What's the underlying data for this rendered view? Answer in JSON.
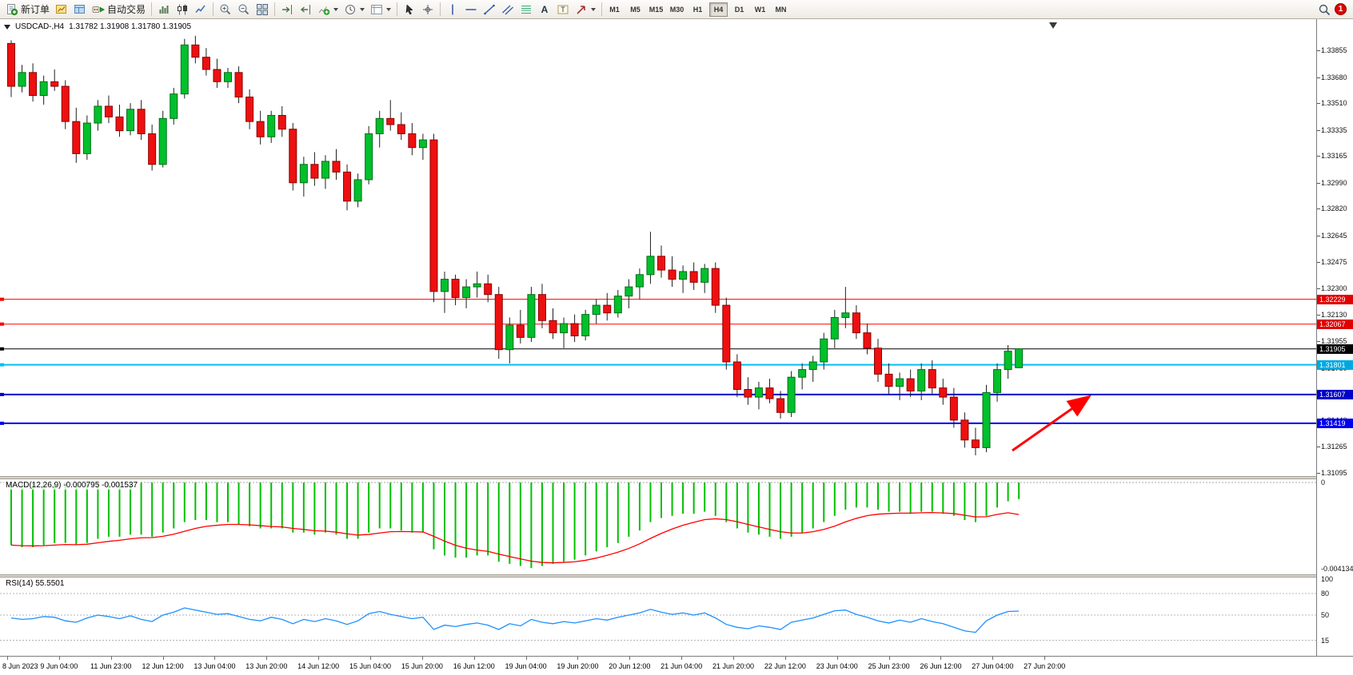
{
  "colors": {
    "bull": "#00C02C",
    "bull_border": "#006E14",
    "bear": "#EE1010",
    "bear_border": "#8E0000",
    "wick": "#202020",
    "accent_red": "#FF0000",
    "accent_cyan": "#00C0F0",
    "accent_blue": "#0000D0",
    "macd_bar": "#00C000",
    "macd_signal": "#FF0000",
    "rsi_line": "#1E90FF"
  },
  "toolbar": {
    "items": [
      {
        "name": "new-order",
        "icon": "new-order-icon",
        "label": "新订单"
      },
      {
        "name": "charts",
        "icon": "chart-window-icon"
      },
      {
        "name": "profiles",
        "icon": "profiles-icon"
      },
      {
        "name": "auto-trading",
        "icon": "auto-trading-icon",
        "label": "自动交易"
      },
      {
        "sep": true
      },
      {
        "name": "bar-chart",
        "icon": "bar-chart-icon"
      },
      {
        "name": "candlestick-chart",
        "icon": "candlestick-icon"
      },
      {
        "name": "line-chart",
        "icon": "line-chart-icon"
      },
      {
        "sep": true
      },
      {
        "name": "zoom-in",
        "icon": "zoom-in-icon"
      },
      {
        "name": "zoom-out",
        "icon": "zoom-out-icon"
      },
      {
        "name": "tile-windows",
        "icon": "tile-windows-icon"
      },
      {
        "sep": true
      },
      {
        "name": "auto-scroll",
        "icon": "auto-scroll-icon"
      },
      {
        "name": "chart-shift",
        "icon": "chart-shift-icon"
      },
      {
        "name": "indicators",
        "icon": "indicators-icon",
        "caret": true
      },
      {
        "name": "periods",
        "icon": "clock-icon",
        "caret": true
      },
      {
        "name": "templates",
        "icon": "template-icon",
        "caret": true
      },
      {
        "sep": true
      },
      {
        "name": "cursor",
        "icon": "cursor-icon"
      },
      {
        "name": "crosshair",
        "icon": "crosshair-icon"
      },
      {
        "sep": true
      },
      {
        "name": "vertical-line",
        "icon": "vline-icon"
      },
      {
        "name": "horizontal-line",
        "icon": "hline-icon"
      },
      {
        "name": "trendline",
        "icon": "trendline-icon"
      },
      {
        "name": "equidistant-channel",
        "icon": "channel-icon"
      },
      {
        "name": "fibonacci",
        "icon": "fibonacci-icon"
      },
      {
        "name": "text",
        "icon": "text-icon"
      },
      {
        "name": "text-label",
        "icon": "label-icon"
      },
      {
        "name": "arrow-tools",
        "icon": "arrow-tools-icon",
        "caret": true
      },
      {
        "sep": true
      }
    ],
    "timeframes": [
      "M1",
      "M5",
      "M15",
      "M30",
      "H1",
      "H4",
      "D1",
      "W1",
      "MN"
    ],
    "active_timeframe": "H4",
    "notification_count": "1"
  },
  "chart": {
    "title": "USDCAD-,H4",
    "ohlc_text": "1.31782 1.31908 1.31780 1.31905",
    "macd_label": "MACD(12,26,9) -0.000795 -0.001537",
    "rsi_label": "RSI(14) 55.5501"
  },
  "chart_data": [
    {
      "type": "candlestick",
      "title": "USDCAD-,H4",
      "ylim": [
        1.31095,
        1.33855
      ],
      "y_ticks": [
        "1.33855",
        "1.33680",
        "1.33510",
        "1.33335",
        "1.33165",
        "1.32990",
        "1.32820",
        "1.32645",
        "1.32475",
        "1.32300",
        "1.32130",
        "1.31955",
        "1.31780",
        "1.31610",
        "1.31440",
        "1.31265",
        "1.31095"
      ],
      "x_labels": [
        "8 Jun 2023",
        "9 Jun 04:00",
        "11 Jun 23:00",
        "12 Jun 12:00",
        "13 Jun 04:00",
        "13 Jun 20:00",
        "14 Jun 12:00",
        "15 Jun 04:00",
        "15 Jun 20:00",
        "16 Jun 12:00",
        "19 Jun 04:00",
        "19 Jun 20:00",
        "20 Jun 12:00",
        "21 Jun 04:00",
        "21 Jun 20:00",
        "22 Jun 12:00",
        "23 Jun 04:00",
        "25 Jun 23:00",
        "26 Jun 12:00",
        "27 Jun 04:00",
        "27 Jun 20:00"
      ],
      "levels": [
        {
          "price": 1.32229,
          "label": "1.32229",
          "color": "#FF0000",
          "badge_color": "#E00000",
          "width": 1
        },
        {
          "price": 1.32067,
          "label": "1.32067",
          "color": "#FF0000",
          "badge_color": "#E00000",
          "width": 1
        },
        {
          "price": 1.31905,
          "label": "1.31905",
          "color": "#000000",
          "badge_color": "#000000",
          "width": 1,
          "role": "current-price"
        },
        {
          "price": 1.31801,
          "label": "1.31801",
          "color": "#00C0F0",
          "badge_color": "#00A8E0",
          "width": 2
        },
        {
          "price": 1.31607,
          "label": "1.31607",
          "color": "#0000C8",
          "badge_color": "#0000C8",
          "width": 2
        },
        {
          "price": 1.31419,
          "label": "1.31419",
          "color": "#0000F0",
          "badge_color": "#0000F0",
          "width": 2
        }
      ],
      "annotations": [
        {
          "type": "arrow",
          "color": "#FF0000",
          "from": [
            1266,
            540
          ],
          "to": [
            1360,
            474
          ]
        }
      ],
      "ohlc": [
        [
          1.339,
          1.3392,
          1.3355,
          1.3362
        ],
        [
          1.3362,
          1.3376,
          1.3358,
          1.3371
        ],
        [
          1.3371,
          1.3377,
          1.3352,
          1.3356
        ],
        [
          1.3356,
          1.3369,
          1.335,
          1.3365
        ],
        [
          1.3365,
          1.3373,
          1.3359,
          1.3362
        ],
        [
          1.3362,
          1.3366,
          1.3334,
          1.3339
        ],
        [
          1.3339,
          1.3348,
          1.3312,
          1.3318
        ],
        [
          1.3318,
          1.3343,
          1.3314,
          1.3338
        ],
        [
          1.3338,
          1.3353,
          1.3333,
          1.3349
        ],
        [
          1.3349,
          1.3356,
          1.3338,
          1.3342
        ],
        [
          1.3342,
          1.335,
          1.3329,
          1.3333
        ],
        [
          1.3333,
          1.3351,
          1.333,
          1.3347
        ],
        [
          1.3347,
          1.3353,
          1.3327,
          1.3331
        ],
        [
          1.3331,
          1.3337,
          1.3307,
          1.3311
        ],
        [
          1.3311,
          1.3346,
          1.3309,
          1.3341
        ],
        [
          1.3341,
          1.3361,
          1.3337,
          1.3357
        ],
        [
          1.3357,
          1.3393,
          1.3354,
          1.3389
        ],
        [
          1.3389,
          1.3395,
          1.3377,
          1.3381
        ],
        [
          1.3381,
          1.3387,
          1.3369,
          1.3373
        ],
        [
          1.3373,
          1.338,
          1.3361,
          1.3365
        ],
        [
          1.3365,
          1.3374,
          1.3361,
          1.3371
        ],
        [
          1.3371,
          1.3375,
          1.3351,
          1.3355
        ],
        [
          1.3355,
          1.336,
          1.3334,
          1.3339
        ],
        [
          1.3339,
          1.3346,
          1.3324,
          1.3329
        ],
        [
          1.3329,
          1.3346,
          1.3325,
          1.3343
        ],
        [
          1.3343,
          1.3349,
          1.3329,
          1.3334
        ],
        [
          1.3334,
          1.3338,
          1.3294,
          1.3299
        ],
        [
          1.3299,
          1.3316,
          1.329,
          1.3311
        ],
        [
          1.3311,
          1.3319,
          1.3297,
          1.3302
        ],
        [
          1.3302,
          1.3317,
          1.3295,
          1.3313
        ],
        [
          1.3313,
          1.3321,
          1.3301,
          1.3306
        ],
        [
          1.3306,
          1.3311,
          1.3281,
          1.3287
        ],
        [
          1.3287,
          1.3305,
          1.3283,
          1.3301
        ],
        [
          1.3301,
          1.3336,
          1.3298,
          1.3331
        ],
        [
          1.3331,
          1.3346,
          1.3322,
          1.3341
        ],
        [
          1.3341,
          1.3353,
          1.3333,
          1.3337
        ],
        [
          1.3337,
          1.3345,
          1.3327,
          1.3331
        ],
        [
          1.3331,
          1.3338,
          1.3317,
          1.3322
        ],
        [
          1.3322,
          1.3331,
          1.3314,
          1.3327
        ],
        [
          1.3327,
          1.3331,
          1.3221,
          1.3228
        ],
        [
          1.3228,
          1.3241,
          1.3214,
          1.3236
        ],
        [
          1.3236,
          1.3239,
          1.3219,
          1.3224
        ],
        [
          1.3224,
          1.3236,
          1.3217,
          1.3231
        ],
        [
          1.3231,
          1.3241,
          1.3224,
          1.3233
        ],
        [
          1.3233,
          1.3239,
          1.3221,
          1.3226
        ],
        [
          1.3226,
          1.3231,
          1.3184,
          1.319
        ],
        [
          1.319,
          1.3211,
          1.3181,
          1.3206
        ],
        [
          1.3206,
          1.3216,
          1.3194,
          1.3198
        ],
        [
          1.3198,
          1.3231,
          1.3195,
          1.3226
        ],
        [
          1.3226,
          1.3233,
          1.3204,
          1.3209
        ],
        [
          1.3209,
          1.3217,
          1.3197,
          1.3201
        ],
        [
          1.3201,
          1.3211,
          1.3191,
          1.3207
        ],
        [
          1.3207,
          1.3213,
          1.3195,
          1.3199
        ],
        [
          1.3199,
          1.3216,
          1.3196,
          1.3213
        ],
        [
          1.3213,
          1.3223,
          1.3207,
          1.3219
        ],
        [
          1.3219,
          1.3227,
          1.3209,
          1.3214
        ],
        [
          1.3214,
          1.3229,
          1.3211,
          1.3225
        ],
        [
          1.3225,
          1.3236,
          1.3217,
          1.3231
        ],
        [
          1.3231,
          1.3243,
          1.3223,
          1.3239
        ],
        [
          1.3239,
          1.3267,
          1.3233,
          1.3251
        ],
        [
          1.3251,
          1.3258,
          1.3237,
          1.3242
        ],
        [
          1.3242,
          1.3251,
          1.3231,
          1.3236
        ],
        [
          1.3236,
          1.3245,
          1.3227,
          1.3241
        ],
        [
          1.3241,
          1.3247,
          1.3229,
          1.3234
        ],
        [
          1.3234,
          1.3246,
          1.3227,
          1.3243
        ],
        [
          1.3243,
          1.3247,
          1.3214,
          1.3219
        ],
        [
          1.3219,
          1.3224,
          1.3177,
          1.3182
        ],
        [
          1.3182,
          1.3187,
          1.3159,
          1.3164
        ],
        [
          1.3164,
          1.3172,
          1.3154,
          1.3159
        ],
        [
          1.3159,
          1.3169,
          1.3151,
          1.3165
        ],
        [
          1.3165,
          1.3171,
          1.3155,
          1.3158
        ],
        [
          1.3158,
          1.3163,
          1.3145,
          1.3149
        ],
        [
          1.3149,
          1.3176,
          1.3146,
          1.3172
        ],
        [
          1.3172,
          1.3181,
          1.3164,
          1.3177
        ],
        [
          1.3177,
          1.3186,
          1.3169,
          1.3182
        ],
        [
          1.3182,
          1.3201,
          1.3177,
          1.3197
        ],
        [
          1.3197,
          1.3216,
          1.3191,
          1.3211
        ],
        [
          1.3211,
          1.3231,
          1.3204,
          1.3214
        ],
        [
          1.3214,
          1.3219,
          1.3197,
          1.3201
        ],
        [
          1.3201,
          1.3207,
          1.3187,
          1.3191
        ],
        [
          1.3191,
          1.3197,
          1.3169,
          1.3174
        ],
        [
          1.3174,
          1.3181,
          1.3161,
          1.3166
        ],
        [
          1.3166,
          1.3175,
          1.3157,
          1.3171
        ],
        [
          1.3171,
          1.3177,
          1.3159,
          1.3163
        ],
        [
          1.3163,
          1.3181,
          1.3157,
          1.3177
        ],
        [
          1.3177,
          1.3183,
          1.3161,
          1.3165
        ],
        [
          1.3165,
          1.3171,
          1.3154,
          1.3159
        ],
        [
          1.3159,
          1.3165,
          1.3139,
          1.3144
        ],
        [
          1.3144,
          1.3149,
          1.3126,
          1.3131
        ],
        [
          1.3131,
          1.3139,
          1.3121,
          1.3126
        ],
        [
          1.3126,
          1.3167,
          1.3123,
          1.3162
        ],
        [
          1.3162,
          1.3181,
          1.3156,
          1.3177
        ],
        [
          1.3177,
          1.3193,
          1.3171,
          1.3189
        ],
        [
          1.31782,
          1.31908,
          1.3178,
          1.31905
        ]
      ]
    },
    {
      "type": "bar",
      "title": "MACD(12,26,9)",
      "label": "MACD(12,26,9) -0.000795 -0.001537",
      "ylim": [
        -0.004134,
        0
      ],
      "y_ticks": [
        "0",
        "-0.004134"
      ],
      "bar_color": "#00C000",
      "signal_color": "#FF0000",
      "values": [
        -0.003,
        -0.0031,
        -0.0031,
        -0.003,
        -0.0029,
        -0.0029,
        -0.003,
        -0.0029,
        -0.0027,
        -0.0026,
        -0.0026,
        -0.0025,
        -0.0025,
        -0.0026,
        -0.0024,
        -0.0022,
        -0.0019,
        -0.0018,
        -0.0018,
        -0.0019,
        -0.0019,
        -0.002,
        -0.0021,
        -0.0022,
        -0.0022,
        -0.0022,
        -0.0024,
        -0.0024,
        -0.0025,
        -0.0024,
        -0.0025,
        -0.0027,
        -0.0027,
        -0.0024,
        -0.0022,
        -0.0022,
        -0.0023,
        -0.0024,
        -0.0024,
        -0.0032,
        -0.0035,
        -0.0036,
        -0.0036,
        -0.0035,
        -0.0035,
        -0.0038,
        -0.0039,
        -0.004,
        -0.0041,
        -0.004,
        -0.0039,
        -0.0038,
        -0.0037,
        -0.0035,
        -0.0033,
        -0.0031,
        -0.0029,
        -0.0026,
        -0.0023,
        -0.0019,
        -0.0017,
        -0.0016,
        -0.0015,
        -0.0015,
        -0.0014,
        -0.0016,
        -0.0019,
        -0.0022,
        -0.0024,
        -0.0025,
        -0.0026,
        -0.0027,
        -0.0026,
        -0.0024,
        -0.0022,
        -0.0019,
        -0.0016,
        -0.0013,
        -0.0012,
        -0.0012,
        -0.0013,
        -0.0014,
        -0.0014,
        -0.0015,
        -0.0014,
        -0.0014,
        -0.0015,
        -0.0016,
        -0.0018,
        -0.0019,
        -0.0016,
        -0.0012,
        -0.0009,
        -0.000795
      ],
      "signal": [
        -0.003,
        -0.00303,
        -0.00304,
        -0.00303,
        -0.003,
        -0.00297,
        -0.00298,
        -0.00296,
        -0.00289,
        -0.00282,
        -0.00277,
        -0.0027,
        -0.00265,
        -0.00264,
        -0.00258,
        -0.00248,
        -0.00234,
        -0.0022,
        -0.0021,
        -0.00205,
        -0.00201,
        -0.00201,
        -0.00203,
        -0.00207,
        -0.00211,
        -0.00213,
        -0.0022,
        -0.00225,
        -0.00231,
        -0.00233,
        -0.00238,
        -0.00246,
        -0.00252,
        -0.00249,
        -0.00242,
        -0.00236,
        -0.00235,
        -0.00236,
        -0.00237,
        -0.00258,
        -0.00281,
        -0.00301,
        -0.00315,
        -0.00324,
        -0.0033,
        -0.00343,
        -0.00355,
        -0.00366,
        -0.00377,
        -0.00383,
        -0.00385,
        -0.00383,
        -0.0038,
        -0.00373,
        -0.00362,
        -0.00349,
        -0.00334,
        -0.00316,
        -0.00294,
        -0.00268,
        -0.00244,
        -0.00223,
        -0.00205,
        -0.00191,
        -0.00178,
        -0.00174,
        -0.00178,
        -0.00188,
        -0.00201,
        -0.00213,
        -0.00225,
        -0.00236,
        -0.00242,
        -0.00242,
        -0.00236,
        -0.00225,
        -0.00209,
        -0.00189,
        -0.00172,
        -0.00159,
        -0.00152,
        -0.00149,
        -0.00147,
        -0.00147,
        -0.00145,
        -0.00144,
        -0.00146,
        -0.00149,
        -0.00157,
        -0.00165,
        -0.00164,
        -0.00153,
        -0.00145,
        -0.001537
      ]
    },
    {
      "type": "line",
      "title": "RSI(14)",
      "label": "RSI(14) 55.5501",
      "ylim": [
        0,
        100
      ],
      "y_ticks": [
        "100",
        "80",
        "50",
        "15"
      ],
      "levels": [
        80,
        50,
        15
      ],
      "line_color": "#1E90FF",
      "values": [
        46,
        44,
        45,
        48,
        47,
        42,
        40,
        46,
        50,
        48,
        45,
        49,
        44,
        41,
        50,
        54,
        60,
        57,
        54,
        51,
        52,
        48,
        44,
        42,
        47,
        44,
        38,
        44,
        41,
        45,
        42,
        37,
        42,
        52,
        55,
        51,
        48,
        45,
        47,
        30,
        36,
        34,
        37,
        39,
        36,
        30,
        38,
        35,
        44,
        40,
        38,
        41,
        39,
        42,
        45,
        43,
        47,
        50,
        53,
        58,
        54,
        51,
        53,
        50,
        53,
        46,
        37,
        33,
        31,
        35,
        33,
        30,
        40,
        43,
        46,
        51,
        56,
        57,
        51,
        47,
        42,
        39,
        43,
        40,
        45,
        41,
        38,
        33,
        28,
        26,
        42,
        50,
        55,
        55.55
      ]
    }
  ]
}
